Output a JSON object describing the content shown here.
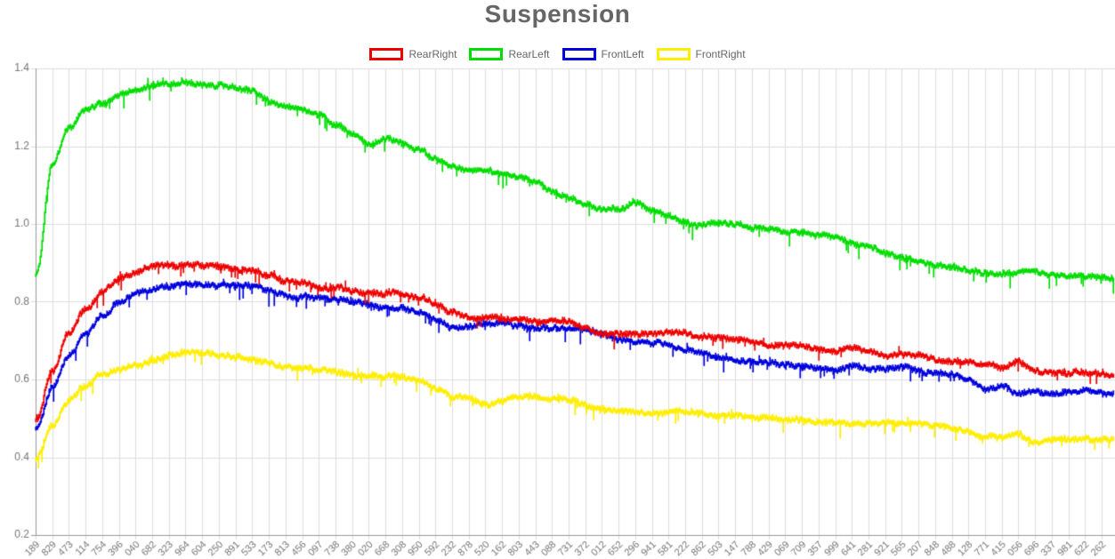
{
  "title": "Suspension",
  "chart_data": {
    "type": "line",
    "title": "Suspension",
    "xlabel": "",
    "ylabel": "",
    "ylim": [
      0.2,
      1.4
    ],
    "y_tick_labels": [
      "1.4",
      "1.2",
      "1.0",
      "0.8",
      "0.6",
      "0.4",
      "0.2"
    ],
    "y_ticks": [
      1.4,
      1.2,
      1.0,
      0.8,
      0.6,
      0.4,
      0.2
    ],
    "grid": true,
    "legend_position": "top",
    "x_tick_labels": [
      "189",
      "829",
      "473",
      "114",
      "754",
      "396",
      "040",
      "682",
      "323",
      "964",
      "604",
      "250",
      "891",
      "533",
      "173",
      "813",
      "456",
      "097",
      "738",
      "380",
      "020",
      "668",
      "308",
      "950",
      "592",
      "232",
      "878",
      "520",
      "162",
      "803",
      "443",
      "088",
      "731",
      "372",
      "012",
      "652",
      "296",
      "941",
      "581",
      "222",
      "862",
      "503",
      "147",
      "788",
      "429",
      "069",
      "709",
      "357",
      "999",
      "641",
      "281",
      "921",
      "565",
      "207",
      "848",
      "488",
      "128",
      "771",
      "415",
      "056",
      "696",
      "337",
      "981",
      "622",
      "262"
    ],
    "series": [
      {
        "name": "RearRight",
        "color": "#ee0000",
        "values": [
          0.5,
          0.62,
          0.72,
          0.78,
          0.83,
          0.86,
          0.87,
          0.88,
          0.885,
          0.885,
          0.885,
          0.885,
          0.88,
          0.875,
          0.865,
          0.855,
          0.85,
          0.845,
          0.84,
          0.835,
          0.825,
          0.82,
          0.815,
          0.805,
          0.79,
          0.765,
          0.755,
          0.76,
          0.76,
          0.76,
          0.755,
          0.755,
          0.75,
          0.74,
          0.73,
          0.725,
          0.72,
          0.715,
          0.715,
          0.71,
          0.7,
          0.695,
          0.69,
          0.69,
          0.685,
          0.68,
          0.675,
          0.665,
          0.66,
          0.67,
          0.66,
          0.655,
          0.66,
          0.655,
          0.65,
          0.645,
          0.645,
          0.64,
          0.625,
          0.635,
          0.61,
          0.605,
          0.61,
          0.615,
          0.61
        ]
      },
      {
        "name": "RearLeft",
        "color": "#00dd00",
        "values": [
          0.87,
          1.15,
          1.24,
          1.29,
          1.315,
          1.335,
          1.35,
          1.365,
          1.37,
          1.375,
          1.37,
          1.365,
          1.355,
          1.345,
          1.325,
          1.315,
          1.305,
          1.29,
          1.265,
          1.245,
          1.215,
          1.23,
          1.22,
          1.2,
          1.17,
          1.155,
          1.15,
          1.145,
          1.14,
          1.13,
          1.12,
          1.095,
          1.08,
          1.06,
          1.05,
          1.05,
          1.065,
          1.045,
          1.03,
          1.015,
          1.005,
          1.0,
          0.995,
          0.99,
          0.985,
          0.975,
          0.97,
          0.96,
          0.955,
          0.945,
          0.94,
          0.93,
          0.925,
          0.915,
          0.905,
          0.9,
          0.89,
          0.885,
          0.875,
          0.87,
          0.865,
          0.86,
          0.855,
          0.855,
          0.85
        ]
      },
      {
        "name": "FrontLeft",
        "color": "#0000dd",
        "values": [
          0.47,
          0.575,
          0.655,
          0.715,
          0.76,
          0.79,
          0.81,
          0.82,
          0.83,
          0.835,
          0.84,
          0.835,
          0.835,
          0.83,
          0.82,
          0.815,
          0.81,
          0.8,
          0.795,
          0.79,
          0.785,
          0.78,
          0.775,
          0.765,
          0.745,
          0.72,
          0.725,
          0.735,
          0.74,
          0.735,
          0.735,
          0.73,
          0.73,
          0.72,
          0.705,
          0.7,
          0.7,
          0.695,
          0.69,
          0.685,
          0.68,
          0.67,
          0.66,
          0.655,
          0.655,
          0.65,
          0.645,
          0.64,
          0.635,
          0.64,
          0.635,
          0.63,
          0.635,
          0.625,
          0.62,
          0.615,
          0.605,
          0.585,
          0.595,
          0.575,
          0.575,
          0.575,
          0.58,
          0.58,
          0.575
        ]
      },
      {
        "name": "FrontRight",
        "color": "#ffee00",
        "values": [
          0.395,
          0.475,
          0.535,
          0.575,
          0.605,
          0.625,
          0.64,
          0.65,
          0.655,
          0.66,
          0.66,
          0.655,
          0.65,
          0.645,
          0.64,
          0.63,
          0.625,
          0.62,
          0.615,
          0.615,
          0.61,
          0.605,
          0.6,
          0.595,
          0.575,
          0.555,
          0.55,
          0.545,
          0.55,
          0.555,
          0.55,
          0.545,
          0.54,
          0.525,
          0.515,
          0.52,
          0.515,
          0.51,
          0.51,
          0.505,
          0.5,
          0.495,
          0.495,
          0.49,
          0.49,
          0.485,
          0.485,
          0.48,
          0.48,
          0.475,
          0.475,
          0.48,
          0.475,
          0.475,
          0.47,
          0.465,
          0.455,
          0.445,
          0.44,
          0.455,
          0.435,
          0.44,
          0.445,
          0.45,
          0.445
        ]
      }
    ],
    "style": {
      "grid_color": "#dddddd",
      "axis_color": "#999999",
      "tick_text_color": "#757575",
      "title_color": "#666666",
      "legend_text_color": "#666666",
      "background": "#ffffff"
    }
  }
}
